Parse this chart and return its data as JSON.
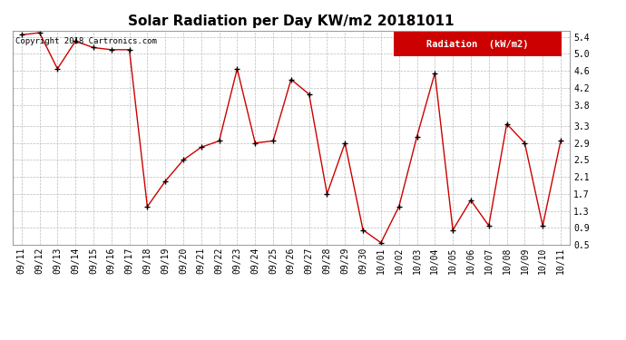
{
  "title": "Solar Radiation per Day KW/m2 20181011",
  "copyright": "Copyright 2018 Cartronics.com",
  "legend_label": "Radiation  (kW/m2)",
  "dates": [
    "09/11",
    "09/12",
    "09/13",
    "09/14",
    "09/15",
    "09/16",
    "09/17",
    "09/18",
    "09/19",
    "09/20",
    "09/21",
    "09/22",
    "09/23",
    "09/24",
    "09/25",
    "09/26",
    "09/27",
    "09/28",
    "09/29",
    "09/30",
    "10/01",
    "10/02",
    "10/03",
    "10/04",
    "10/05",
    "10/06",
    "10/07",
    "10/08",
    "10/09",
    "10/10",
    "10/11"
  ],
  "values": [
    5.45,
    5.5,
    4.65,
    5.3,
    5.15,
    5.1,
    5.1,
    1.4,
    2.0,
    2.5,
    2.8,
    2.95,
    4.65,
    2.9,
    2.95,
    4.4,
    4.05,
    1.7,
    2.9,
    0.85,
    0.55,
    1.4,
    3.05,
    4.55,
    0.85,
    1.55,
    0.95,
    3.35,
    2.9,
    0.95,
    2.95
  ],
  "line_color": "#cc0000",
  "marker": "+",
  "marker_color": "#000000",
  "bg_color": "#ffffff",
  "plot_bg_color": "#ffffff",
  "grid_color": "#bbbbbb",
  "ylim": [
    0.5,
    5.55
  ],
  "yticks": [
    0.5,
    0.9,
    1.3,
    1.7,
    2.1,
    2.5,
    2.9,
    3.3,
    3.8,
    4.2,
    4.6,
    5.0,
    5.4
  ],
  "title_fontsize": 11,
  "copyright_fontsize": 6.5,
  "legend_fontsize": 7.5,
  "tick_fontsize": 7
}
